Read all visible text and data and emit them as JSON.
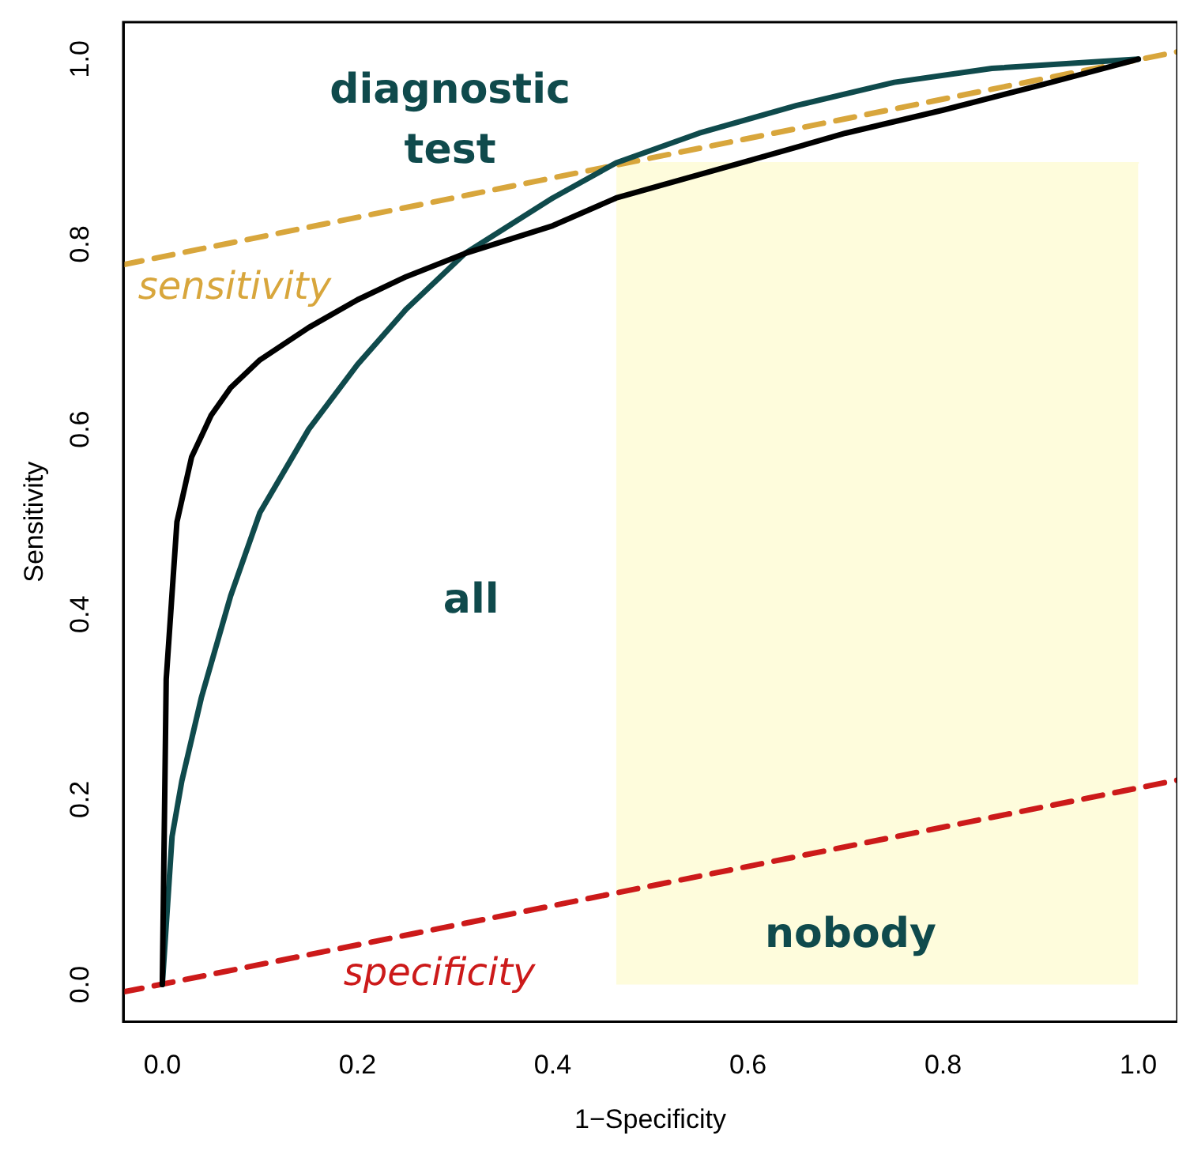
{
  "chart_data": {
    "type": "line",
    "xlabel": "1−Specificity",
    "ylabel": "Sensitivity",
    "xlim": [
      -0.04,
      1.04
    ],
    "ylim": [
      -0.04,
      1.04
    ],
    "xticks": [
      {
        "value": 0,
        "label": "0.0"
      },
      {
        "value": 0.2,
        "label": "0.2"
      },
      {
        "value": 0.4,
        "label": "0.4"
      },
      {
        "value": 0.6,
        "label": "0.6"
      },
      {
        "value": 0.8,
        "label": "0.8"
      },
      {
        "value": 1,
        "label": "1.0"
      }
    ],
    "yticks": [
      {
        "value": 0,
        "label": "0.0"
      },
      {
        "value": 0.2,
        "label": "0.2"
      },
      {
        "value": 0.4,
        "label": "0.4"
      },
      {
        "value": 0.6,
        "label": "0.6"
      },
      {
        "value": 0.8,
        "label": "0.8"
      },
      {
        "value": 1,
        "label": "1.0"
      }
    ],
    "grid": false,
    "legend": false,
    "marker": "none",
    "series": [
      {
        "type": "area",
        "color": "#fefcdc",
        "x": [
          0.465,
          1.0
        ],
        "values": [
          0.888,
          0.888
        ]
      },
      {
        "color": "#000000",
        "x": [
          0,
          0.004,
          0.015,
          0.03,
          0.05,
          0.07,
          0.1,
          0.15,
          0.2,
          0.25,
          0.31,
          0.4,
          0.465,
          0.6,
          0.7,
          0.8,
          0.9,
          1
        ],
        "values": [
          0,
          0.33,
          0.5,
          0.57,
          0.615,
          0.645,
          0.675,
          0.71,
          0.74,
          0.765,
          0.79,
          0.82,
          0.85,
          0.89,
          0.92,
          0.945,
          0.972,
          1
        ]
      },
      {
        "color": "#0f4a4c",
        "x": [
          0,
          0.01,
          0.02,
          0.04,
          0.07,
          0.1,
          0.15,
          0.2,
          0.25,
          0.31,
          0.4,
          0.465,
          0.55,
          0.65,
          0.75,
          0.85,
          1
        ],
        "values": [
          0,
          0.16,
          0.22,
          0.31,
          0.42,
          0.51,
          0.6,
          0.67,
          0.73,
          0.79,
          0.85,
          0.888,
          0.92,
          0.95,
          0.975,
          0.99,
          1
        ]
      },
      {
        "name": "sensitivity",
        "color": "#d8a63c",
        "line_style": "dashed",
        "x": [
          -0.04,
          1.04
        ],
        "values": [
          0.778,
          1.008
        ]
      },
      {
        "name": "specificity",
        "color": "#cc1a1a",
        "line_style": "dashed",
        "x": [
          -0.04,
          1.04
        ],
        "values": [
          -0.008,
          0.221
        ]
      }
    ],
    "annotations": [
      "diagnostic test",
      "all",
      "nobody"
    ]
  }
}
